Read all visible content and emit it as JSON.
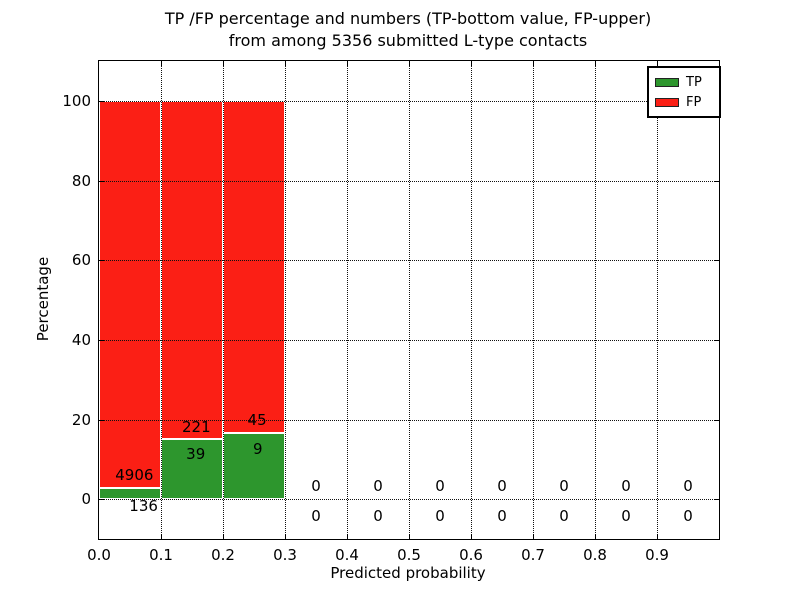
{
  "figure": {
    "title_line1": "TP /FP percentage and numbers (TP-bottom value, FP-upper)",
    "title_line2": "from among 5356 submitted L-type contacts"
  },
  "chart_data": {
    "type": "bar",
    "title": "TP /FP percentage and numbers (TP-bottom value, FP-upper) from among 5356 submitted L-type contacts",
    "xlabel": "Predicted probability",
    "ylabel": "Percentage",
    "xlim": [
      0.0,
      1.0
    ],
    "ylim": [
      -10,
      110
    ],
    "xticks": [
      0.0,
      0.1,
      0.2,
      0.3,
      0.4,
      0.5,
      0.6,
      0.7,
      0.8,
      0.9
    ],
    "xtick_labels": [
      "0.0",
      "0.1",
      "0.2",
      "0.3",
      "0.4",
      "0.5",
      "0.6",
      "0.7",
      "0.8",
      "0.9"
    ],
    "yticks": [
      0,
      20,
      40,
      60,
      80,
      100
    ],
    "ytick_labels": [
      "0",
      "20",
      "40",
      "60",
      "80",
      "100"
    ],
    "grid": "dotted",
    "legend_position": "upper-right",
    "total_contacts": 5356,
    "colors": {
      "tp": "#2d962d",
      "fp": "#fb1f15"
    },
    "legend": {
      "entries": [
        {
          "label": "TP",
          "color": "#2d962d"
        },
        {
          "label": "FP",
          "color": "#fb1f15"
        }
      ]
    },
    "bin_width": 0.1,
    "bars": [
      {
        "bin_start": 0.0,
        "bin_end": 0.1,
        "tp_count": 136,
        "fp_count": 4906,
        "tp_pct": 2.7,
        "fp_pct": 97.3
      },
      {
        "bin_start": 0.1,
        "bin_end": 0.2,
        "tp_count": 39,
        "fp_count": 221,
        "tp_pct": 15.0,
        "fp_pct": 85.0
      },
      {
        "bin_start": 0.2,
        "bin_end": 0.3,
        "tp_count": 9,
        "fp_count": 45,
        "tp_pct": 16.7,
        "fp_pct": 83.3
      }
    ],
    "annotations": [
      {
        "text": "4906",
        "x": 0.057,
        "y": 6.0
      },
      {
        "text": "136",
        "x": 0.072,
        "y": -1.6
      },
      {
        "text": "221",
        "x": 0.157,
        "y": 18.2
      },
      {
        "text": "39",
        "x": 0.156,
        "y": 11.3
      },
      {
        "text": "45",
        "x": 0.255,
        "y": 20.0
      },
      {
        "text": "9",
        "x": 0.256,
        "y": 12.6
      },
      {
        "text": "0",
        "x": 0.35,
        "y": 3.3
      },
      {
        "text": "0",
        "x": 0.35,
        "y": -4.3
      },
      {
        "text": "0",
        "x": 0.45,
        "y": 3.3
      },
      {
        "text": "0",
        "x": 0.45,
        "y": -4.3
      },
      {
        "text": "0",
        "x": 0.55,
        "y": 3.3
      },
      {
        "text": "0",
        "x": 0.55,
        "y": -4.3
      },
      {
        "text": "0",
        "x": 0.65,
        "y": 3.3
      },
      {
        "text": "0",
        "x": 0.65,
        "y": -4.3
      },
      {
        "text": "0",
        "x": 0.75,
        "y": 3.3
      },
      {
        "text": "0",
        "x": 0.75,
        "y": -4.3
      },
      {
        "text": "0",
        "x": 0.85,
        "y": 3.3
      },
      {
        "text": "0",
        "x": 0.85,
        "y": -4.3
      },
      {
        "text": "0",
        "x": 0.95,
        "y": 3.3
      },
      {
        "text": "0",
        "x": 0.95,
        "y": -4.3
      }
    ]
  }
}
